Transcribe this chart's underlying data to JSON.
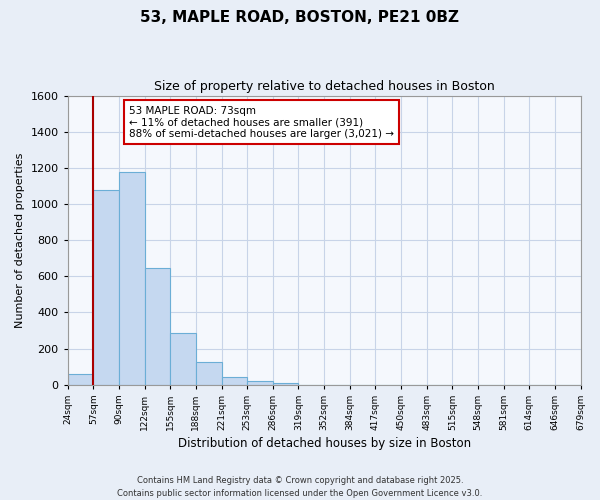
{
  "title": "53, MAPLE ROAD, BOSTON, PE21 0BZ",
  "subtitle": "Size of property relative to detached houses in Boston",
  "bar_values": [
    60,
    1080,
    1175,
    645,
    285,
    125,
    40,
    20,
    10,
    0,
    0,
    0,
    0,
    0,
    0,
    0,
    0,
    0,
    0,
    0
  ],
  "bin_labels": [
    "24sqm",
    "57sqm",
    "90sqm",
    "122sqm",
    "155sqm",
    "188sqm",
    "221sqm",
    "253sqm",
    "286sqm",
    "319sqm",
    "352sqm",
    "384sqm",
    "417sqm",
    "450sqm",
    "483sqm",
    "515sqm",
    "548sqm",
    "581sqm",
    "614sqm",
    "646sqm",
    "679sqm"
  ],
  "bar_color": "#c5d8f0",
  "bar_edge_color": "#6baed6",
  "vline_color": "#aa0000",
  "ylim": [
    0,
    1600
  ],
  "yticks": [
    0,
    200,
    400,
    600,
    800,
    1000,
    1200,
    1400,
    1600
  ],
  "xlabel": "Distribution of detached houses by size in Boston",
  "ylabel": "Number of detached properties",
  "annotation_title": "53 MAPLE ROAD: 73sqm",
  "annotation_line1": "← 11% of detached houses are smaller (391)",
  "annotation_line2": "88% of semi-detached houses are larger (3,021) →",
  "annotation_box_color": "#ffffff",
  "annotation_box_edge": "#cc0000",
  "footer_line1": "Contains HM Land Registry data © Crown copyright and database right 2025.",
  "footer_line2": "Contains public sector information licensed under the Open Government Licence v3.0.",
  "bg_color": "#e8eef7",
  "plot_bg_color": "#f5f8fd",
  "grid_color": "#c8d4e8"
}
